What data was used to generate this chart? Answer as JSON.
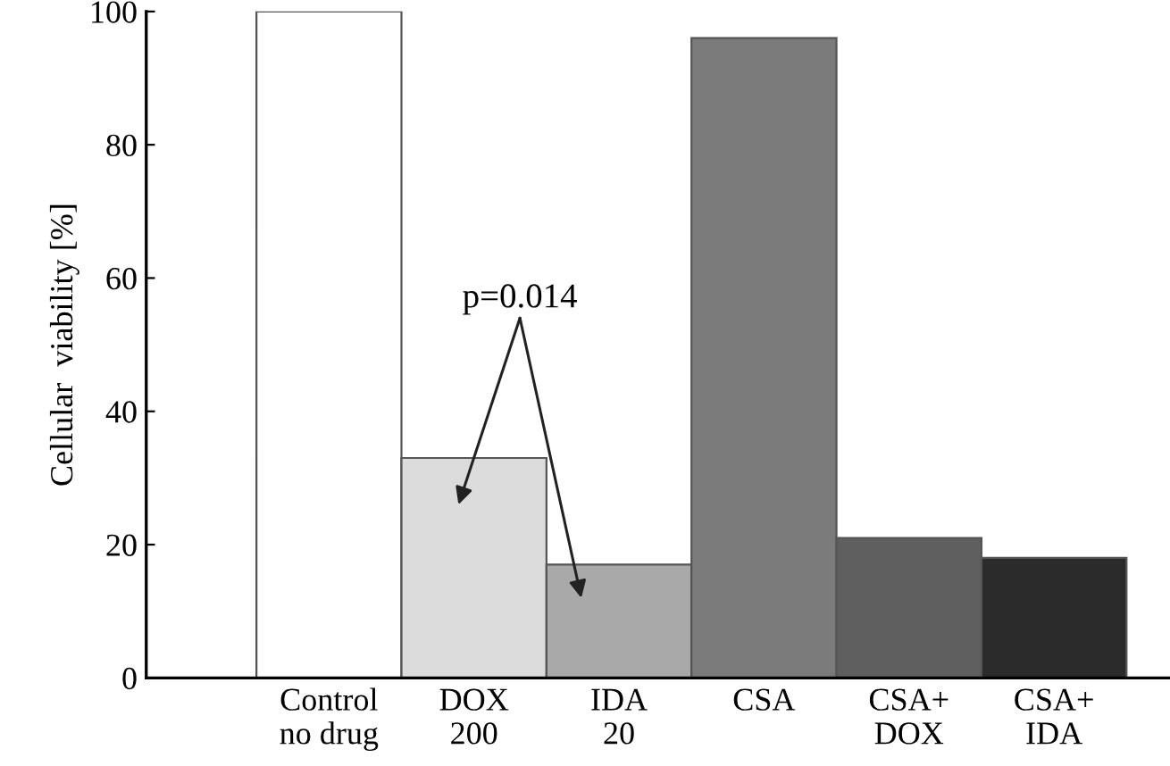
{
  "chart_data": {
    "type": "bar",
    "ylabel": "Cellular  viability [%]",
    "categories": [
      "Control\nno drug",
      "DOX\n200",
      "IDA\n20",
      "CSA",
      "CSA+\nDOX",
      "CSA+\nIDA"
    ],
    "values": [
      100,
      33,
      17,
      96,
      21,
      18
    ],
    "colors": [
      "#ffffff",
      "#dcdcdc",
      "#a9a9a9",
      "#7b7b7b",
      "#5f5f5f",
      "#2b2b2b"
    ],
    "ylim": [
      0,
      100
    ],
    "yticks": [
      0,
      20,
      40,
      60,
      80,
      100
    ],
    "grid": false,
    "annotations": [
      "p=0.014"
    ]
  }
}
